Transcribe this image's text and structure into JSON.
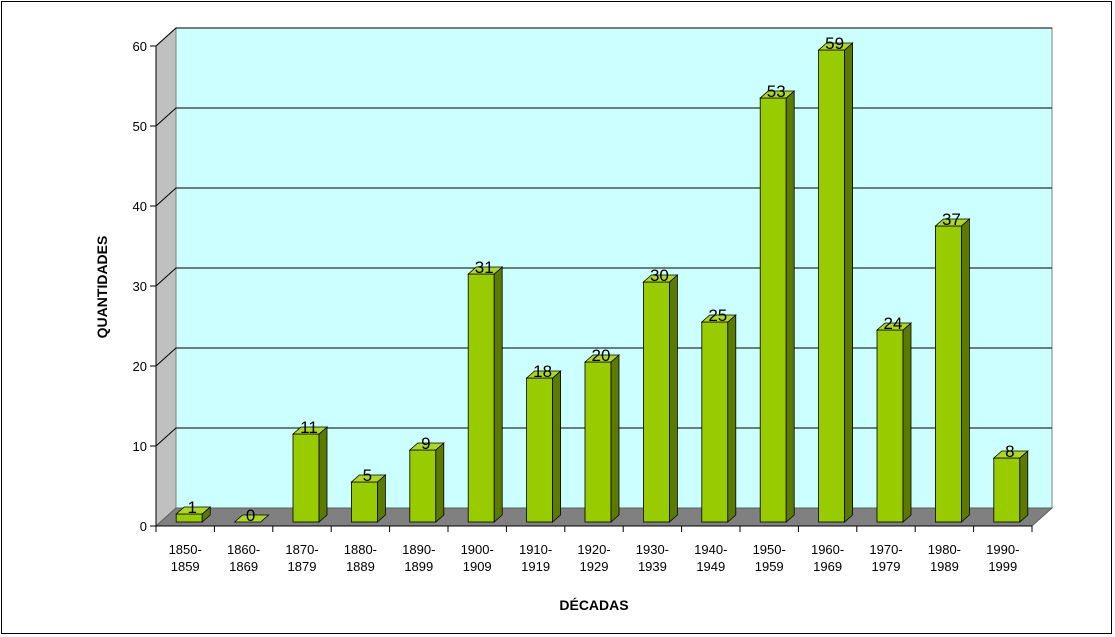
{
  "chart_data": {
    "type": "bar",
    "style": "3d-column",
    "categories": [
      [
        "1850-",
        "1859"
      ],
      [
        "1860-",
        "1869"
      ],
      [
        "1870-",
        "1879"
      ],
      [
        "1880-",
        "1889"
      ],
      [
        "1890-",
        "1899"
      ],
      [
        "1900-",
        "1909"
      ],
      [
        "1910-",
        "1919"
      ],
      [
        "1920-",
        "1929"
      ],
      [
        "1930-",
        "1939"
      ],
      [
        "1940-",
        "1949"
      ],
      [
        "1950-",
        "1959"
      ],
      [
        "1960-",
        "1969"
      ],
      [
        "1970-",
        "1979"
      ],
      [
        "1980-",
        "1989"
      ],
      [
        "1990-",
        "1999"
      ]
    ],
    "values": [
      1,
      0,
      11,
      5,
      9,
      31,
      18,
      20,
      30,
      25,
      53,
      59,
      24,
      37,
      8
    ],
    "xlabel": "DÉCADAS",
    "ylabel": "QUANTIDADES",
    "ylim": [
      0,
      60
    ],
    "yticks": [
      0,
      10,
      20,
      30,
      40,
      50,
      60
    ],
    "grid": true,
    "legend": "none",
    "data_labels": true,
    "colors": {
      "bar_front": "#99cc00",
      "bar_side": "#5c7a00",
      "bar_top": "#aed62a",
      "wall": "#ccffff",
      "floor": "#808080",
      "side_wall": "#c0c0c0"
    }
  }
}
